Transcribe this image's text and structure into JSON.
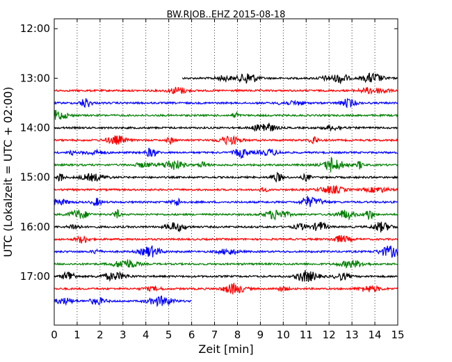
{
  "chart_data": {
    "type": "line",
    "title": "BW.RJOB..EHZ 2015-08-18",
    "xlabel": "Zeit  [min]",
    "ylabel": "UTC (Lokalzeit = UTC + 02:00)",
    "xlim": [
      0,
      15
    ],
    "ylim_time": [
      "11:48",
      "17:59"
    ],
    "x_ticks": [
      "0",
      "1",
      "2",
      "3",
      "4",
      "5",
      "6",
      "7",
      "8",
      "9",
      "10",
      "11",
      "12",
      "13",
      "14",
      "15"
    ],
    "y_ticks": [
      "12:00",
      "13:00",
      "14:00",
      "15:00",
      "16:00",
      "17:00"
    ],
    "grid": "vertical-dotted",
    "legend": "none",
    "colors": {
      "black": "#000000",
      "red": "#ff0000",
      "blue": "#0000ff",
      "green": "#008000"
    },
    "traces": [
      {
        "time": "13:00",
        "color": "black",
        "x_start": 5.6,
        "x_end": 15
      },
      {
        "time": "13:15",
        "color": "red",
        "x_start": 0,
        "x_end": 15
      },
      {
        "time": "13:30",
        "color": "blue",
        "x_start": 0,
        "x_end": 15
      },
      {
        "time": "13:45",
        "color": "green",
        "x_start": 0,
        "x_end": 15
      },
      {
        "time": "14:00",
        "color": "black",
        "x_start": 0,
        "x_end": 15
      },
      {
        "time": "14:15",
        "color": "red",
        "x_start": 0,
        "x_end": 15
      },
      {
        "time": "14:30",
        "color": "blue",
        "x_start": 0,
        "x_end": 15
      },
      {
        "time": "14:45",
        "color": "green",
        "x_start": 0,
        "x_end": 15
      },
      {
        "time": "15:00",
        "color": "black",
        "x_start": 0,
        "x_end": 15
      },
      {
        "time": "15:15",
        "color": "red",
        "x_start": 0,
        "x_end": 15
      },
      {
        "time": "15:30",
        "color": "blue",
        "x_start": 0,
        "x_end": 15
      },
      {
        "time": "15:45",
        "color": "green",
        "x_start": 0,
        "x_end": 15
      },
      {
        "time": "16:00",
        "color": "black",
        "x_start": 0,
        "x_end": 15
      },
      {
        "time": "16:15",
        "color": "red",
        "x_start": 0,
        "x_end": 15
      },
      {
        "time": "16:30",
        "color": "blue",
        "x_start": 0,
        "x_end": 15
      },
      {
        "time": "16:45",
        "color": "green",
        "x_start": 0,
        "x_end": 15
      },
      {
        "time": "17:00",
        "color": "black",
        "x_start": 0,
        "x_end": 15
      },
      {
        "time": "17:15",
        "color": "red",
        "x_start": 0,
        "x_end": 15
      },
      {
        "time": "17:30",
        "color": "blue",
        "x_start": 0,
        "x_end": 6
      }
    ]
  }
}
